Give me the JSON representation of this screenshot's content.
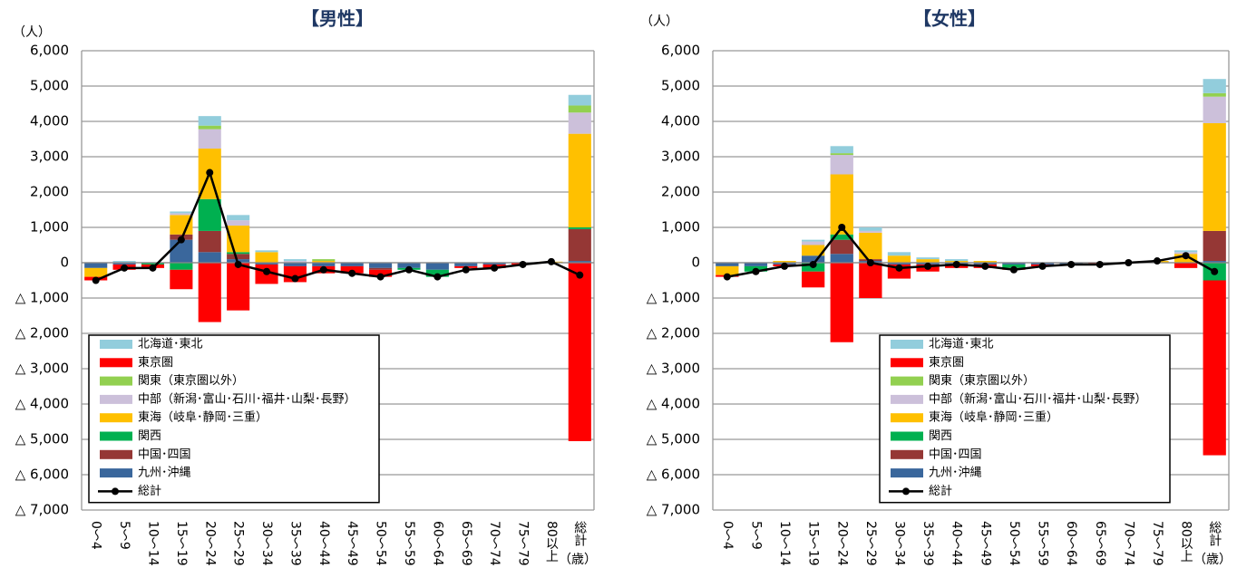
{
  "chart_data": [
    {
      "type": "bar",
      "title": "【男性】",
      "y_label": "（人）",
      "x_label": "（歳）",
      "categories": [
        "0～4",
        "5～9",
        "10～14",
        "15～19",
        "20～24",
        "25～29",
        "30～34",
        "35～39",
        "40～44",
        "45～49",
        "50～54",
        "55～59",
        "60～64",
        "65～69",
        "70～74",
        "75～79",
        "80以上",
        "総計"
      ],
      "ylim": [
        -7000,
        6000
      ],
      "yticks": [
        {
          "value": -7000,
          "label": "△ 7,000"
        },
        {
          "value": -6000,
          "label": "△ 6,000"
        },
        {
          "value": -5000,
          "label": "△ 5,000"
        },
        {
          "value": -4000,
          "label": "△ 4,000"
        },
        {
          "value": -3000,
          "label": "△ 3,000"
        },
        {
          "value": -2000,
          "label": "△ 2,000"
        },
        {
          "value": -1000,
          "label": "△ 1,000"
        },
        0,
        {
          "value": 1000,
          "label": "1,000"
        },
        {
          "value": 2000,
          "label": "2,000"
        },
        {
          "value": 3000,
          "label": "3,000"
        },
        {
          "value": 4000,
          "label": "4,000"
        },
        {
          "value": 5000,
          "label": "5,000"
        },
        {
          "value": 6000,
          "label": "6,000"
        }
      ],
      "grid": true,
      "stacked": true,
      "legend": "lower-left",
      "series": [
        {
          "name": "北海道･東北",
          "color": "#92cddc",
          "values": [
            0,
            50,
            0,
            50,
            270,
            150,
            50,
            50,
            0,
            0,
            0,
            0,
            0,
            0,
            0,
            0,
            0,
            300
          ]
        },
        {
          "name": "東京圏",
          "color": "#ff0000",
          "values": [
            -100,
            -150,
            -100,
            -550,
            -1680,
            -1350,
            -550,
            -450,
            -200,
            -200,
            -200,
            0,
            0,
            -50,
            -100,
            -50,
            0,
            -5050
          ]
        },
        {
          "name": "関東（東京圏以外）",
          "color": "#92d050",
          "values": [
            0,
            0,
            0,
            0,
            100,
            0,
            0,
            0,
            50,
            0,
            0,
            0,
            0,
            0,
            0,
            0,
            0,
            200
          ]
        },
        {
          "name": "中部（新潟･富山･石川･福井･山梨･長野）",
          "color": "#ccc0da",
          "values": [
            0,
            0,
            0,
            50,
            550,
            150,
            0,
            50,
            0,
            0,
            0,
            0,
            0,
            0,
            0,
            0,
            0,
            600
          ]
        },
        {
          "name": "東海（岐阜･静岡･三重）",
          "color": "#ffc000",
          "values": [
            -250,
            0,
            0,
            550,
            1430,
            750,
            300,
            0,
            50,
            0,
            0,
            0,
            0,
            0,
            0,
            0,
            30,
            2650
          ]
        },
        {
          "name": "関西",
          "color": "#00b050",
          "values": [
            0,
            0,
            -50,
            -200,
            900,
            50,
            0,
            0,
            0,
            0,
            0,
            -50,
            -200,
            0,
            0,
            0,
            0,
            50
          ]
        },
        {
          "name": "中国･四国",
          "color": "#953735",
          "values": [
            0,
            0,
            0,
            150,
            600,
            150,
            0,
            0,
            0,
            0,
            -50,
            0,
            0,
            0,
            0,
            0,
            0,
            900
          ]
        },
        {
          "name": "九州･沖縄",
          "color": "#3a679c",
          "values": [
            -150,
            -50,
            0,
            650,
            300,
            100,
            -50,
            -100,
            -100,
            -100,
            -150,
            -150,
            -200,
            -100,
            -50,
            0,
            0,
            50
          ]
        },
        {
          "name": "総計",
          "color": "#000000",
          "type": "line",
          "values": [
            -500,
            -150,
            -150,
            650,
            2550,
            -50,
            -250,
            -450,
            -200,
            -300,
            -400,
            -200,
            -400,
            -200,
            -150,
            -50,
            30,
            -350
          ]
        }
      ]
    },
    {
      "type": "bar",
      "title": "【女性】",
      "y_label": "（人）",
      "x_label": "（歳）",
      "categories": [
        "0～4",
        "5～9",
        "10～14",
        "15～19",
        "20～24",
        "25～29",
        "30～34",
        "35～39",
        "40～44",
        "45～49",
        "50～54",
        "55～59",
        "60～64",
        "65～69",
        "70～74",
        "75～79",
        "80以上",
        "総計"
      ],
      "ylim": [
        -7000,
        6000
      ],
      "yticks": [
        {
          "value": -7000,
          "label": "△ 7,000"
        },
        {
          "value": -6000,
          "label": "△ 6,000"
        },
        {
          "value": -5000,
          "label": "△ 5,000"
        },
        {
          "value": -4000,
          "label": "△ 4,000"
        },
        {
          "value": -3000,
          "label": "△ 3,000"
        },
        {
          "value": -2000,
          "label": "△ 2,000"
        },
        {
          "value": -1000,
          "label": "△ 1,000"
        },
        0,
        {
          "value": 1000,
          "label": "1,000"
        },
        {
          "value": 2000,
          "label": "2,000"
        },
        {
          "value": 3000,
          "label": "3,000"
        },
        {
          "value": 4000,
          "label": "4,000"
        },
        {
          "value": 5000,
          "label": "5,000"
        },
        {
          "value": 6000,
          "label": "6,000"
        }
      ],
      "grid": true,
      "stacked": true,
      "legend": "lower-right",
      "series": [
        {
          "name": "北海道･東北",
          "color": "#92cddc",
          "values": [
            0,
            0,
            0,
            50,
            200,
            100,
            100,
            50,
            50,
            0,
            0,
            0,
            0,
            0,
            0,
            0,
            50,
            400
          ]
        },
        {
          "name": "東京圏",
          "color": "#ff0000",
          "values": [
            -50,
            0,
            -50,
            -450,
            -2250,
            -1000,
            -400,
            -200,
            -100,
            -100,
            -50,
            -50,
            0,
            -50,
            0,
            0,
            -150,
            -4950
          ]
        },
        {
          "name": "関東（東京圏以外）",
          "color": "#92d050",
          "values": [
            0,
            0,
            0,
            0,
            50,
            0,
            0,
            0,
            0,
            0,
            0,
            0,
            0,
            0,
            0,
            0,
            0,
            100
          ]
        },
        {
          "name": "中部（新潟･富山･石川･福井･山梨･長野）",
          "color": "#ccc0da",
          "values": [
            0,
            0,
            0,
            100,
            550,
            50,
            0,
            0,
            0,
            0,
            0,
            0,
            0,
            0,
            0,
            0,
            50,
            750
          ]
        },
        {
          "name": "東海（岐阜･静岡･三重）",
          "color": "#ffc000",
          "values": [
            -250,
            0,
            50,
            300,
            1700,
            750,
            200,
            100,
            50,
            50,
            0,
            0,
            0,
            0,
            0,
            50,
            250,
            3050
          ]
        },
        {
          "name": "関西",
          "color": "#00b050",
          "values": [
            0,
            -150,
            0,
            -250,
            150,
            0,
            0,
            0,
            0,
            0,
            -100,
            0,
            0,
            0,
            0,
            0,
            0,
            -500
          ]
        },
        {
          "name": "中国･四国",
          "color": "#953735",
          "values": [
            0,
            0,
            0,
            0,
            400,
            50,
            0,
            0,
            0,
            0,
            0,
            0,
            0,
            0,
            0,
            0,
            0,
            850
          ]
        },
        {
          "name": "九州･沖縄",
          "color": "#3a679c",
          "values": [
            -100,
            -100,
            -50,
            200,
            250,
            50,
            -50,
            -50,
            -50,
            -50,
            -50,
            -50,
            -50,
            0,
            0,
            0,
            0,
            50
          ]
        },
        {
          "name": "総計",
          "color": "#000000",
          "type": "line",
          "values": [
            -400,
            -250,
            -100,
            -50,
            1000,
            0,
            -150,
            -100,
            -50,
            -100,
            -200,
            -100,
            -50,
            -50,
            0,
            50,
            200,
            -250
          ]
        }
      ]
    }
  ]
}
